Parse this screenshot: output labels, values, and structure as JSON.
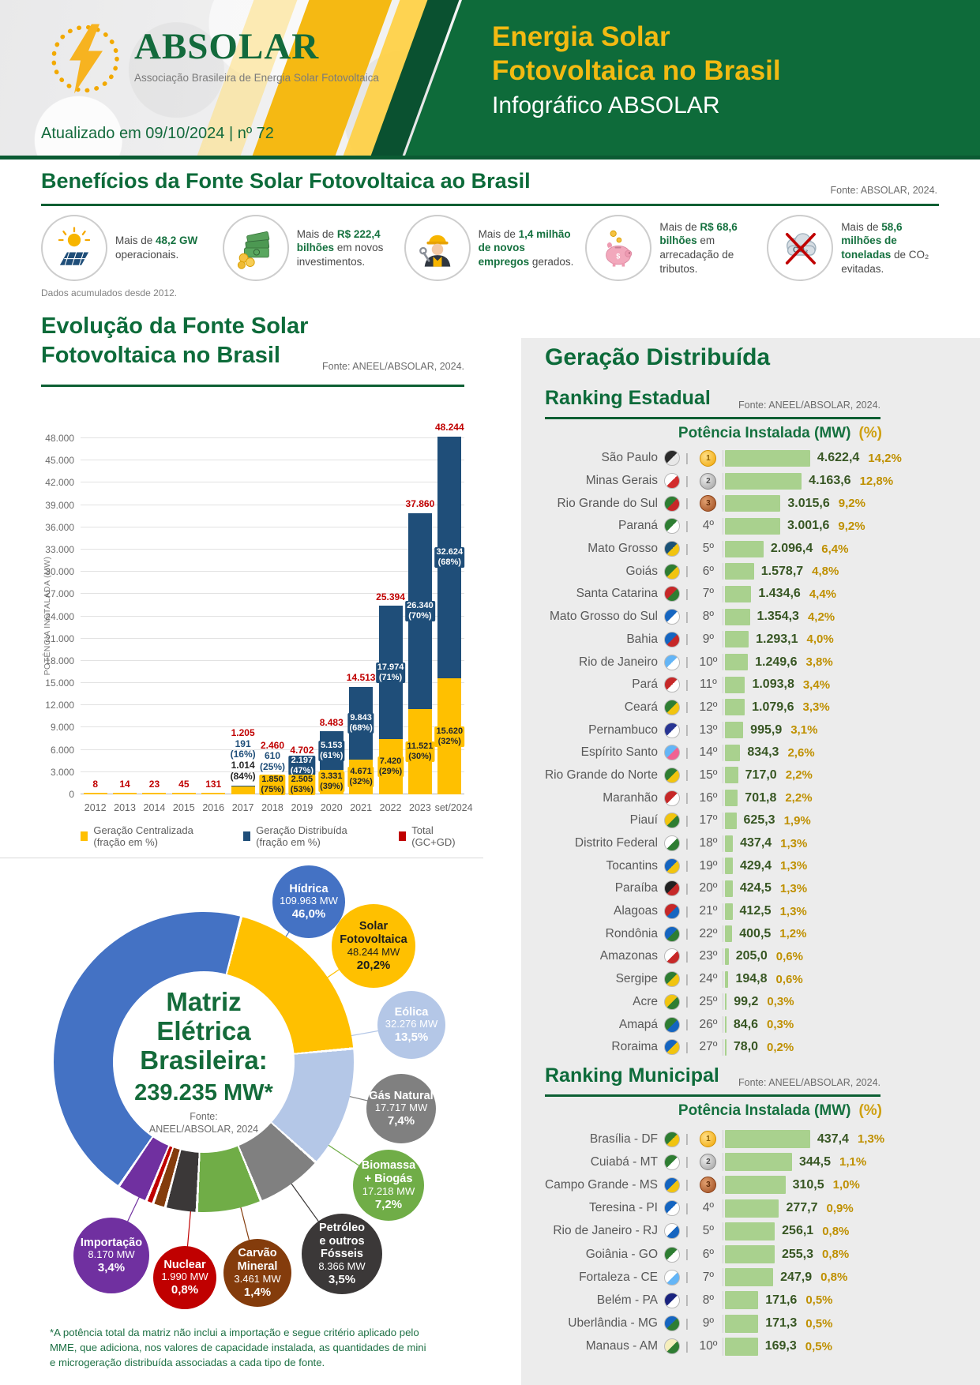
{
  "header": {
    "logo_title": "ABSOLAR",
    "logo_subtitle": "Associação Brasileira de Energia Solar Fotovoltaica",
    "updated": "Atualizado em 09/10/2024 | nº 72",
    "title_line1": "Energia Solar",
    "title_line2": "Fotovoltaica no Brasil",
    "subtitle": "Infográfico ABSOLAR"
  },
  "benefits": {
    "title": "Benefícios da Fonte Solar Fotovoltaica ao Brasil",
    "source": "Fonte: ABSOLAR, 2024.",
    "footnote": "Dados acumulados desde 2012.",
    "items": [
      {
        "icon": "solar-panel",
        "pre": "Mais de ",
        "bold": "48,2 GW",
        "post": " operacionais."
      },
      {
        "icon": "money",
        "pre": "Mais de ",
        "bold": "R$ 222,4 bilhões",
        "post": " em novos investimentos."
      },
      {
        "icon": "worker",
        "pre": "Mais de ",
        "bold": "1,4 milhão de novos empregos",
        "post": " gerados."
      },
      {
        "icon": "piggy-bank",
        "pre": "Mais de ",
        "bold": "R$ 68,6 bilhões",
        "post": " em arrecadação de tributos."
      },
      {
        "icon": "co2",
        "pre": "Mais de ",
        "bold": "58,6 milhões de toneladas",
        "post": " de CO₂ evitadas."
      }
    ]
  },
  "distributed": {
    "title": "Geração Distribuída"
  },
  "chart_data": [
    {
      "type": "bar",
      "title": "Evolução da Fonte Solar Fotovoltaica no Brasil",
      "title_line1": "Evolução da Fonte Solar",
      "title_line2": "Fotovoltaica no Brasil",
      "source": "Fonte: ANEEL/ABSOLAR, 2024.",
      "ylabel": "POTÊNCIA INSTALADA (MW)",
      "ylim": [
        0,
        48000
      ],
      "ytick_step": 3000,
      "categories": [
        "2012",
        "2013",
        "2014",
        "2015",
        "2016",
        "2017",
        "2018",
        "2019",
        "2020",
        "2021",
        "2022",
        "2023",
        "set/2024"
      ],
      "legend": [
        {
          "label": "Geração Centralizada (fração em %)",
          "color": "#FFC000"
        },
        {
          "label": "Geração Distribuída (fração em %)",
          "color": "#1F4E79"
        },
        {
          "label": "Total (GC+GD)",
          "color": "#C00000"
        }
      ],
      "bars": [
        {
          "year": "2012",
          "total": 8,
          "total_label": "8"
        },
        {
          "year": "2013",
          "total": 14,
          "total_label": "14"
        },
        {
          "year": "2014",
          "total": 23,
          "total_label": "23"
        },
        {
          "year": "2015",
          "total": 45,
          "total_label": "45"
        },
        {
          "year": "2016",
          "total": 131,
          "total_label": "131"
        },
        {
          "year": "2017",
          "total": 1205,
          "total_label": "1.205",
          "gd": 191,
          "gd_label": "191|(16%)",
          "gd_pos": "above",
          "gc": 1014,
          "gc_label": "1.014|(84%)",
          "gc_pos": "above"
        },
        {
          "year": "2018",
          "total": 2460,
          "total_label": "2.460",
          "gd": 610,
          "gd_label": "610|(25%)",
          "gd_pos": "above",
          "gc": 1850,
          "gc_label": "1.850|(75%)",
          "gc_pos": "inside"
        },
        {
          "year": "2019",
          "total": 4702,
          "total_label": "4.702",
          "gd": 2197,
          "gd_label": "2.197|(47%)",
          "gd_pos": "inside",
          "gc": 2505,
          "gc_label": "2.505|(53%)",
          "gc_pos": "inside"
        },
        {
          "year": "2020",
          "total": 8483,
          "total_label": "8.483",
          "gd": 5153,
          "gd_label": "5.153|(61%)",
          "gd_pos": "inside",
          "gc": 3331,
          "gc_label": "3.331|(39%)",
          "gc_pos": "inside"
        },
        {
          "year": "2021",
          "total": 14513,
          "total_label": "14.513",
          "gd": 9843,
          "gd_label": "9.843|(68%)",
          "gd_pos": "inside",
          "gc": 4671,
          "gc_label": "4.671|(32%)",
          "gc_pos": "inside"
        },
        {
          "year": "2022",
          "total": 25394,
          "total_label": "25.394",
          "gd": 17974,
          "gd_label": "17.974|(71%)",
          "gd_pos": "inside",
          "gc": 7420,
          "gc_label": "7.420|(29%)",
          "gc_pos": "inside"
        },
        {
          "year": "2023",
          "total": 37860,
          "total_label": "37.860",
          "gd": 26340,
          "gd_label": "26.340|(70%)",
          "gd_pos": "inside",
          "gc": 11521,
          "gc_label": "11.521|(30%)",
          "gc_pos": "inside"
        },
        {
          "year": "set/2024",
          "total": 48244,
          "total_label": "48.244",
          "gd": 32624,
          "gd_label": "32.624|(68%)",
          "gd_pos": "inside",
          "gc": 15620,
          "gc_label": "15.620|(32%)",
          "gc_pos": "inside"
        }
      ]
    },
    {
      "type": "pie",
      "title": "Matriz Elétrica Brasileira: 239.235 MW*",
      "title_line1": "Matriz",
      "title_line2": "Elétrica",
      "title_line3": "Brasileira:",
      "total_label": "239.235 MW*",
      "source_line1": "Fonte:",
      "source_line2": "ANEEL/ABSOLAR, 2024",
      "footnote": "*A potência total da matriz não inclui a importação e segue critério aplicado pelo MME, que adiciona, nos valores de capacidade instalada, as quantidades de mini e microgeração distribuída associadas a cada tipo de fonte.",
      "slices": [
        {
          "name": "Hídrica",
          "label_lines": "Hídrica",
          "mw": "109.963 MW",
          "pct": "46,0%",
          "pct_value": 46.0,
          "color": "#4472C4"
        },
        {
          "name": "Solar Fotovoltaica",
          "label_lines": "Solar|Fotovoltaica",
          "mw": "48.244 MW",
          "pct": "20,2%",
          "pct_value": 20.2,
          "color": "#FFC000",
          "dark_text": true
        },
        {
          "name": "Eólica",
          "label_lines": "Eólica",
          "mw": "32.276 MW",
          "pct": "13,5%",
          "pct_value": 13.5,
          "color": "#B4C7E7"
        },
        {
          "name": "Gás Natural",
          "label_lines": "Gás Natural",
          "mw": "17.717 MW",
          "pct": "7,4%",
          "pct_value": 7.4,
          "color": "#808080"
        },
        {
          "name": "Biomassa + Biogás",
          "label_lines": "Biomassa|+ Biogás",
          "mw": "17.218 MW",
          "pct": "7,2%",
          "pct_value": 7.2,
          "color": "#70AD47"
        },
        {
          "name": "Petróleo e outros Fósseis",
          "label_lines": "Petróleo|e outros|Fósseis",
          "mw": "8.366 MW",
          "pct": "3,5%",
          "pct_value": 3.5,
          "color": "#3B3838"
        },
        {
          "name": "Carvão Mineral",
          "label_lines": "Carvão|Mineral",
          "mw": "3.461 MW",
          "pct": "1,4%",
          "pct_value": 1.4,
          "color": "#843C0C"
        },
        {
          "name": "Nuclear",
          "label_lines": "Nuclear",
          "mw": "1.990 MW",
          "pct": "0,8%",
          "pct_value": 0.8,
          "color": "#C00000"
        },
        {
          "name": "Importação",
          "label_lines": "Importação",
          "mw": "8.170 MW",
          "pct": "3,4%",
          "pct_value": 3.4,
          "color": "#7030A0"
        }
      ]
    },
    {
      "type": "bar",
      "title": "Ranking Estadual",
      "source": "Fonte: ANEEL/ABSOLAR, 2024.",
      "header_mw": "Potência Instalada (MW)",
      "header_pct": "(%)",
      "bar_color": "#A9D18E",
      "max": 4622.4,
      "rows": [
        {
          "rank": 1,
          "name": "São Paulo",
          "value": 4622.4,
          "value_label": "4.622,4",
          "pct": "14,2%",
          "flag": [
            "#2b2b2b",
            "#e8e8e8"
          ]
        },
        {
          "rank": 2,
          "name": "Minas Gerais",
          "value": 4163.6,
          "value_label": "4.163,6",
          "pct": "12,8%",
          "flag": [
            "#ffffff",
            "#d22d2d"
          ]
        },
        {
          "rank": 3,
          "name": "Rio Grande do Sul",
          "value": 3015.6,
          "value_label": "3.015,6",
          "pct": "9,2%",
          "flag": [
            "#2e7d32",
            "#c62828"
          ]
        },
        {
          "rank": 4,
          "name": "Paraná",
          "value": 3001.6,
          "value_label": "3.001,6",
          "pct": "9,2%",
          "flag": [
            "#2e7d32",
            "#ffffff"
          ]
        },
        {
          "rank": 5,
          "name": "Mato Grosso",
          "value": 2096.4,
          "value_label": "2.096,4",
          "pct": "6,4%",
          "flag": [
            "#1a5276",
            "#f1c40f"
          ]
        },
        {
          "rank": 6,
          "name": "Goiás",
          "value": 1578.7,
          "value_label": "1.578,7",
          "pct": "4,8%",
          "flag": [
            "#2e7d32",
            "#f1c40f"
          ]
        },
        {
          "rank": 7,
          "name": "Santa Catarina",
          "value": 1434.6,
          "value_label": "1.434,6",
          "pct": "4,4%",
          "flag": [
            "#c62828",
            "#2e7d32"
          ]
        },
        {
          "rank": 8,
          "name": "Mato Grosso do Sul",
          "value": 1354.3,
          "value_label": "1.354,3",
          "pct": "4,2%",
          "flag": [
            "#1565c0",
            "#ffffff"
          ]
        },
        {
          "rank": 9,
          "name": "Bahia",
          "value": 1293.1,
          "value_label": "1.293,1",
          "pct": "4,0%",
          "flag": [
            "#1565c0",
            "#c62828"
          ]
        },
        {
          "rank": 10,
          "name": "Rio de Janeiro",
          "value": 1249.6,
          "value_label": "1.249,6",
          "pct": "3,8%",
          "flag": [
            "#64b5f6",
            "#ffffff"
          ]
        },
        {
          "rank": 11,
          "name": "Pará",
          "value": 1093.8,
          "value_label": "1.093,8",
          "pct": "3,4%",
          "flag": [
            "#c62828",
            "#ffffff"
          ]
        },
        {
          "rank": 12,
          "name": "Ceará",
          "value": 1079.6,
          "value_label": "1.079,6",
          "pct": "3,3%",
          "flag": [
            "#2e7d32",
            "#f1c40f"
          ]
        },
        {
          "rank": 13,
          "name": "Pernambuco",
          "value": 995.9,
          "value_label": "995,9",
          "pct": "3,1%",
          "flag": [
            "#283593",
            "#ffffff"
          ]
        },
        {
          "rank": 14,
          "name": "Espírito Santo",
          "value": 834.3,
          "value_label": "834,3",
          "pct": "2,6%",
          "flag": [
            "#64b5f6",
            "#f06292"
          ]
        },
        {
          "rank": 15,
          "name": "Rio Grande do Norte",
          "value": 717.0,
          "value_label": "717,0",
          "pct": "2,2%",
          "flag": [
            "#2e7d32",
            "#f1c40f"
          ]
        },
        {
          "rank": 16,
          "name": "Maranhão",
          "value": 701.8,
          "value_label": "701,8",
          "pct": "2,2%",
          "flag": [
            "#c62828",
            "#ffffff"
          ]
        },
        {
          "rank": 17,
          "name": "Piauí",
          "value": 625.3,
          "value_label": "625,3",
          "pct": "1,9%",
          "flag": [
            "#f1c40f",
            "#2e7d32"
          ]
        },
        {
          "rank": 18,
          "name": "Distrito Federal",
          "value": 437.4,
          "value_label": "437,4",
          "pct": "1,3%",
          "flag": [
            "#ffffff",
            "#2e7d32"
          ]
        },
        {
          "rank": 19,
          "name": "Tocantins",
          "value": 429.4,
          "value_label": "429,4",
          "pct": "1,3%",
          "flag": [
            "#1565c0",
            "#f1c40f"
          ]
        },
        {
          "rank": 20,
          "name": "Paraíba",
          "value": 424.5,
          "value_label": "424,5",
          "pct": "1,3%",
          "flag": [
            "#212121",
            "#c62828"
          ]
        },
        {
          "rank": 21,
          "name": "Alagoas",
          "value": 412.5,
          "value_label": "412,5",
          "pct": "1,3%",
          "flag": [
            "#c62828",
            "#1565c0"
          ]
        },
        {
          "rank": 22,
          "name": "Rondônia",
          "value": 400.5,
          "value_label": "400,5",
          "pct": "1,2%",
          "flag": [
            "#1565c0",
            "#2e7d32"
          ]
        },
        {
          "rank": 23,
          "name": "Amazonas",
          "value": 205.0,
          "value_label": "205,0",
          "pct": "0,6%",
          "flag": [
            "#ffffff",
            "#c62828"
          ]
        },
        {
          "rank": 24,
          "name": "Sergipe",
          "value": 194.8,
          "value_label": "194,8",
          "pct": "0,6%",
          "flag": [
            "#2e7d32",
            "#f1c40f"
          ]
        },
        {
          "rank": 25,
          "name": "Acre",
          "value": 99.2,
          "value_label": "99,2",
          "pct": "0,3%",
          "flag": [
            "#f1c40f",
            "#2e7d32"
          ]
        },
        {
          "rank": 26,
          "name": "Amapá",
          "value": 84.6,
          "value_label": "84,6",
          "pct": "0,3%",
          "flag": [
            "#2e7d32",
            "#1565c0"
          ]
        },
        {
          "rank": 27,
          "name": "Roraima",
          "value": 78.0,
          "value_label": "78,0",
          "pct": "0,2%",
          "flag": [
            "#1565c0",
            "#f1c40f"
          ]
        }
      ]
    },
    {
      "type": "bar",
      "title": "Ranking Municipal",
      "source": "Fonte: ANEEL/ABSOLAR, 2024.",
      "header_mw": "Potência Instalada (MW)",
      "header_pct": "(%)",
      "bar_color": "#A9D18E",
      "max": 437.4,
      "rows": [
        {
          "rank": 1,
          "name": "Brasília - DF",
          "value": 437.4,
          "value_label": "437,4",
          "pct": "1,3%",
          "flag": [
            "#2e7d32",
            "#f1c40f"
          ]
        },
        {
          "rank": 2,
          "name": "Cuiabá - MT",
          "value": 344.5,
          "value_label": "344,5",
          "pct": "1,1%",
          "flag": [
            "#2e7d32",
            "#ffffff"
          ]
        },
        {
          "rank": 3,
          "name": "Campo Grande - MS",
          "value": 310.5,
          "value_label": "310,5",
          "pct": "1,0%",
          "flag": [
            "#1565c0",
            "#f1c40f"
          ]
        },
        {
          "rank": 4,
          "name": "Teresina - PI",
          "value": 277.7,
          "value_label": "277,7",
          "pct": "0,9%",
          "flag": [
            "#1565c0",
            "#ffffff"
          ]
        },
        {
          "rank": 5,
          "name": "Rio de Janeiro - RJ",
          "value": 256.1,
          "value_label": "256,1",
          "pct": "0,8%",
          "flag": [
            "#ffffff",
            "#1565c0"
          ]
        },
        {
          "rank": 6,
          "name": "Goiânia - GO",
          "value": 255.3,
          "value_label": "255,3",
          "pct": "0,8%",
          "flag": [
            "#2e7d32",
            "#ffffff"
          ]
        },
        {
          "rank": 7,
          "name": "Fortaleza - CE",
          "value": 247.9,
          "value_label": "247,9",
          "pct": "0,8%",
          "flag": [
            "#ffffff",
            "#64b5f6"
          ]
        },
        {
          "rank": 8,
          "name": "Belém - PA",
          "value": 171.6,
          "value_label": "171,6",
          "pct": "0,5%",
          "flag": [
            "#1a237e",
            "#ffffff"
          ]
        },
        {
          "rank": 9,
          "name": "Uberlândia - MG",
          "value": 171.3,
          "value_label": "171,3",
          "pct": "0,5%",
          "flag": [
            "#1565c0",
            "#2e7d32"
          ]
        },
        {
          "rank": 10,
          "name": "Manaus - AM",
          "value": 169.3,
          "value_label": "169,3",
          "pct": "0,5%",
          "flag": [
            "#f5eebc",
            "#2e7d32"
          ]
        }
      ]
    }
  ]
}
